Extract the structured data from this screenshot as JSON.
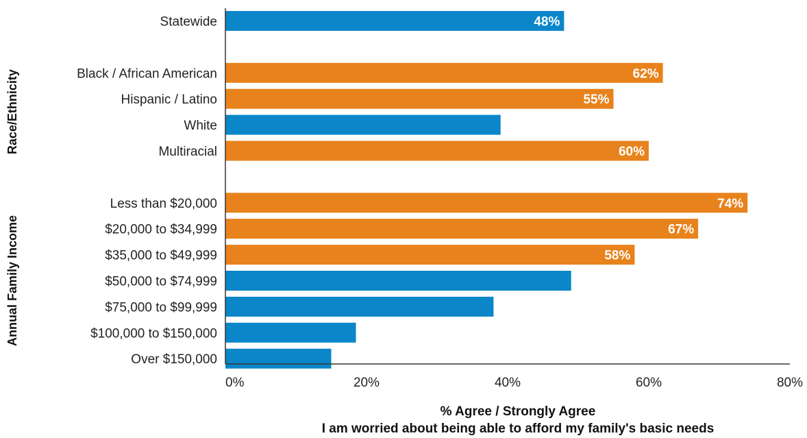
{
  "chart_data": {
    "type": "bar",
    "orientation": "horizontal",
    "title": "",
    "xlabel": "% Agree / Strongly Agree",
    "subtitle": "I am worried about being able to afford my family's basic needs",
    "ylabel": "",
    "xlim": [
      0,
      80
    ],
    "xticks": [
      "0%",
      "20%",
      "40%",
      "60%",
      "80%"
    ],
    "grid": false,
    "colors": {
      "highlight": "#E8821C",
      "default": "#0A86C9"
    },
    "groups": [
      {
        "name": "",
        "categories": [
          {
            "label": "Statewide",
            "value": 48,
            "data_label": "48%",
            "highlight": false
          }
        ]
      },
      {
        "name": "Race/Ethnicity",
        "categories": [
          {
            "label": "Black / African American",
            "value": 62,
            "data_label": "62%",
            "highlight": true
          },
          {
            "label": "Hispanic / Latino",
            "value": 55,
            "data_label": "55%",
            "highlight": true
          },
          {
            "label": "White",
            "value": 39,
            "data_label": "",
            "highlight": false
          },
          {
            "label": "Multiracial",
            "value": 60,
            "data_label": "60%",
            "highlight": true
          }
        ]
      },
      {
        "name": "Annual Family Income",
        "categories": [
          {
            "label": "Less than $20,000",
            "value": 74,
            "data_label": "74%",
            "highlight": true
          },
          {
            "label": "$20,000 to $34,999",
            "value": 67,
            "data_label": "67%",
            "highlight": true
          },
          {
            "label": "$35,000 to $49,999",
            "value": 58,
            "data_label": "58%",
            "highlight": true
          },
          {
            "label": "$50,000 to $74,999",
            "value": 49,
            "data_label": "",
            "highlight": false
          },
          {
            "label": "$75,000 to $99,999",
            "value": 38,
            "data_label": "",
            "highlight": false
          },
          {
            "label": "$100,000 to $150,000",
            "value": 18.5,
            "data_label": "",
            "highlight": false
          },
          {
            "label": "Over $150,000",
            "value": 15,
            "data_label": "",
            "highlight": false
          }
        ]
      }
    ]
  }
}
